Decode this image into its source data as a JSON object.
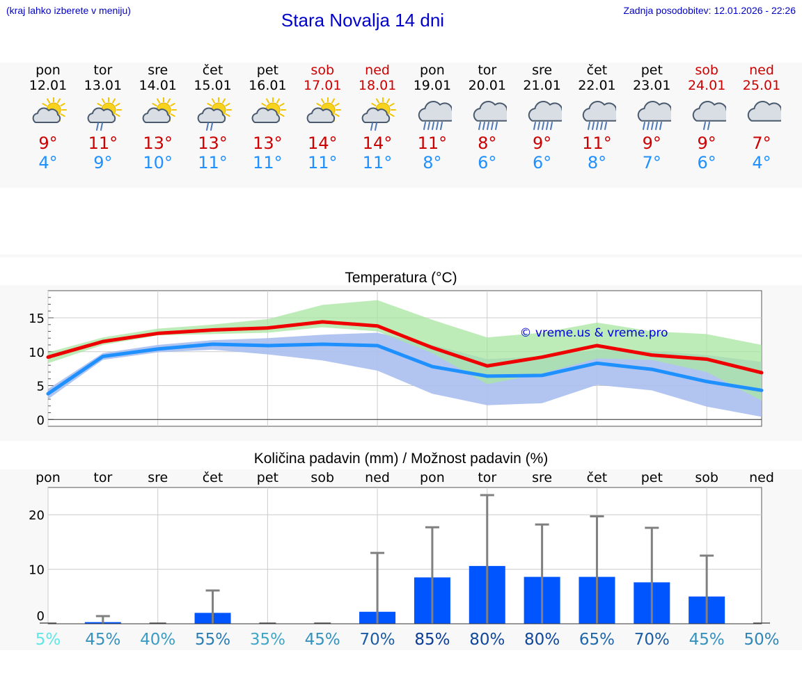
{
  "header": {
    "menu_hint": "(kraj lahko izberete v meniju)",
    "title": "Stara Novalja 14 dni",
    "last_update": "Zadnja posodobitev: 12.01.2026 - 22:26"
  },
  "days": [
    {
      "name": "pon",
      "date": "12.01",
      "weekend": false,
      "icon": "sun-cloud-icon",
      "max": "9°",
      "min": "4°"
    },
    {
      "name": "tor",
      "date": "13.01",
      "weekend": false,
      "icon": "sun-cloud-rain-icon",
      "max": "11°",
      "min": "9°"
    },
    {
      "name": "sre",
      "date": "14.01",
      "weekend": false,
      "icon": "sun-cloud-icon",
      "max": "13°",
      "min": "10°"
    },
    {
      "name": "čet",
      "date": "15.01",
      "weekend": false,
      "icon": "sun-cloud-rain-icon",
      "max": "13°",
      "min": "11°"
    },
    {
      "name": "pet",
      "date": "16.01",
      "weekend": false,
      "icon": "sun-cloud-icon",
      "max": "13°",
      "min": "11°"
    },
    {
      "name": "sob",
      "date": "17.01",
      "weekend": true,
      "icon": "sun-cloud-icon",
      "max": "14°",
      "min": "11°"
    },
    {
      "name": "ned",
      "date": "18.01",
      "weekend": true,
      "icon": "sun-cloud-rain-icon",
      "max": "14°",
      "min": "11°"
    },
    {
      "name": "pon",
      "date": "19.01",
      "weekend": false,
      "icon": "cloud-heavy-rain-icon",
      "max": "11°",
      "min": "8°"
    },
    {
      "name": "tor",
      "date": "20.01",
      "weekend": false,
      "icon": "cloud-heavy-rain-icon",
      "max": "8°",
      "min": "6°"
    },
    {
      "name": "sre",
      "date": "21.01",
      "weekend": false,
      "icon": "cloud-heavy-rain-icon",
      "max": "9°",
      "min": "6°"
    },
    {
      "name": "čet",
      "date": "22.01",
      "weekend": false,
      "icon": "cloud-heavy-rain-icon",
      "max": "11°",
      "min": "8°"
    },
    {
      "name": "pet",
      "date": "23.01",
      "weekend": false,
      "icon": "cloud-heavy-rain-icon",
      "max": "9°",
      "min": "7°"
    },
    {
      "name": "sob",
      "date": "24.01",
      "weekend": true,
      "icon": "cloud-rain-icon",
      "max": "9°",
      "min": "6°"
    },
    {
      "name": "ned",
      "date": "25.01",
      "weekend": true,
      "icon": "cloud-icon",
      "max": "7°",
      "min": "4°"
    }
  ],
  "colors": {
    "max_line": "#ee0000",
    "min_line": "#1e90ff",
    "max_band": "#a8e6a0",
    "min_band": "#aabff0",
    "overlap_band": "#7cc4a0",
    "precip_bar": "#0055ff",
    "error_bar": "#808080",
    "weekend": "#cc0000"
  },
  "chart_data": [
    {
      "type": "line",
      "title": "Temperatura (°C)",
      "watermark": "© vreme.us & vreme.pro",
      "ylim": [
        -1,
        19
      ],
      "yticks": [
        "0",
        "5",
        "10",
        "15"
      ],
      "series": [
        {
          "name": "max",
          "values": [
            9.2,
            11.5,
            12.7,
            13.2,
            13.5,
            14.4,
            13.8,
            10.6,
            7.9,
            9.2,
            10.9,
            9.5,
            8.9,
            6.9
          ],
          "band_low": [
            8.3,
            11.0,
            12.4,
            12.6,
            12.8,
            13.6,
            13.0,
            9.8,
            5.2,
            6.8,
            9.0,
            8.8,
            7.0,
            2.8
          ],
          "band_high": [
            9.9,
            12.1,
            13.4,
            14.0,
            14.8,
            16.9,
            17.6,
            14.7,
            12.1,
            12.8,
            14.3,
            13.0,
            12.6,
            11.0
          ]
        },
        {
          "name": "min",
          "values": [
            3.8,
            9.3,
            10.4,
            11.1,
            10.9,
            11.1,
            10.9,
            7.8,
            6.4,
            6.5,
            8.3,
            7.4,
            5.6,
            4.3
          ],
          "band_low": [
            3.0,
            8.8,
            9.9,
            10.3,
            9.6,
            8.7,
            7.2,
            3.8,
            2.1,
            2.4,
            5.1,
            4.3,
            1.9,
            0.4
          ],
          "band_high": [
            4.5,
            9.8,
            11.0,
            11.7,
            12.0,
            12.5,
            12.8,
            11.0,
            8.9,
            9.3,
            10.3,
            10.1,
            9.5,
            8.5
          ]
        }
      ]
    },
    {
      "type": "bar",
      "title": "Količina padavin (mm) / Možnost padavin (%)",
      "categories": [
        "pon",
        "tor",
        "sre",
        "čet",
        "pet",
        "sob",
        "ned",
        "pon",
        "tor",
        "sre",
        "čet",
        "pet",
        "sob",
        "ned"
      ],
      "ylim": [
        0,
        25
      ],
      "yticks": [
        "0",
        "10",
        "20"
      ],
      "values": [
        0,
        0.3,
        0,
        2.0,
        0,
        0,
        2.2,
        8.5,
        10.6,
        8.6,
        8.6,
        7.6,
        5.0,
        0
      ],
      "error_high": [
        0,
        1.4,
        0,
        6.1,
        0,
        0,
        13.0,
        17.7,
        23.6,
        18.2,
        19.7,
        17.6,
        12.5,
        0
      ],
      "probabilities": [
        "5%",
        "45%",
        "40%",
        "55%",
        "35%",
        "45%",
        "70%",
        "85%",
        "80%",
        "80%",
        "65%",
        "70%",
        "45%",
        "50%"
      ],
      "probability_values": [
        5,
        45,
        40,
        55,
        35,
        45,
        70,
        85,
        80,
        80,
        65,
        70,
        45,
        50
      ]
    }
  ]
}
